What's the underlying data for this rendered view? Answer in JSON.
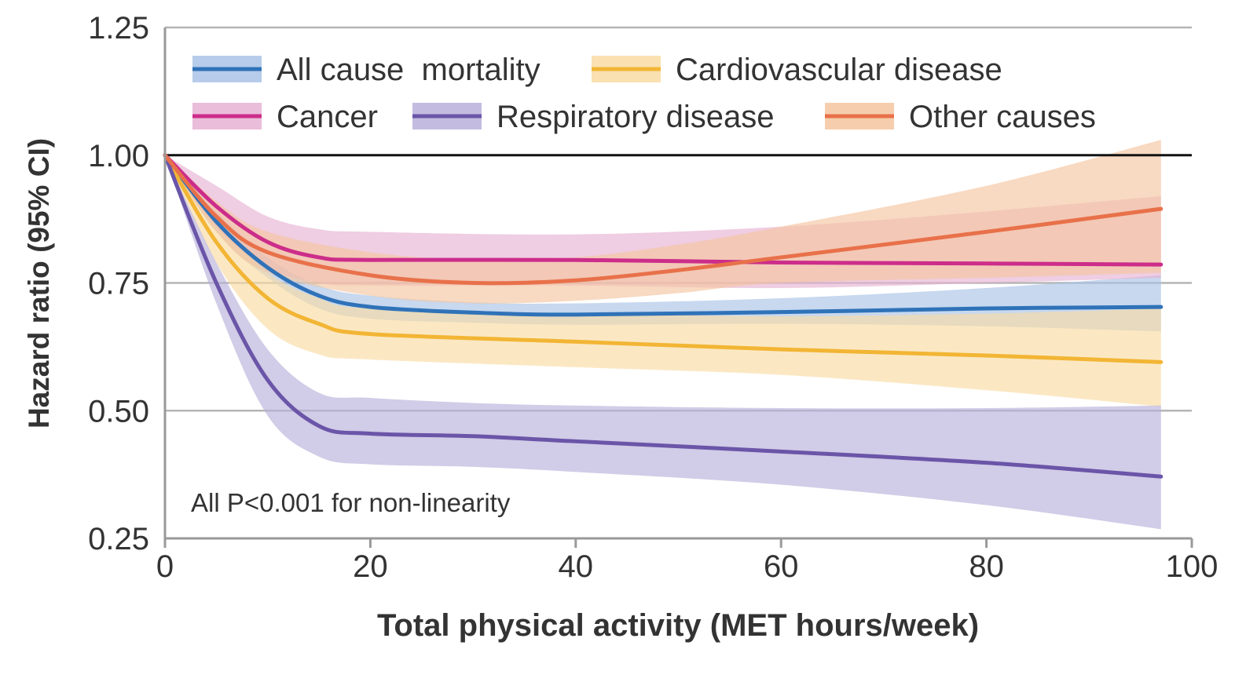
{
  "chart_data": {
    "type": "line",
    "title": "",
    "xlabel": "Total physical activity (MET hours/week)",
    "ylabel": "Hazard ratio (95% CI)",
    "xlim": [
      0,
      100
    ],
    "ylim": [
      0.25,
      1.25
    ],
    "xticks": [
      "0",
      "20",
      "40",
      "60",
      "80",
      "100"
    ],
    "yticks": [
      "0.25",
      "0.50",
      "0.75",
      "1.00",
      "1.25"
    ],
    "reference_line": 1.0,
    "grid": "horizontal",
    "legend_position": "top",
    "annotation": "All P<0.001 for non-linearity",
    "series": [
      {
        "name": "All cause  mortality",
        "color": "#2f72b8",
        "band_color": "#a9c3e6",
        "x": [
          0,
          5,
          10,
          15,
          20,
          30,
          40,
          60,
          80,
          97
        ],
        "y": [
          1.0,
          0.87,
          0.78,
          0.725,
          0.703,
          0.692,
          0.688,
          0.693,
          0.7,
          0.703
        ],
        "lower": [
          1.0,
          0.85,
          0.76,
          0.7,
          0.68,
          0.672,
          0.668,
          0.67,
          0.665,
          0.655
        ],
        "upper": [
          1.0,
          0.89,
          0.8,
          0.745,
          0.725,
          0.712,
          0.71,
          0.72,
          0.74,
          0.765
        ]
      },
      {
        "name": "Cardiovascular disease",
        "color": "#f2b534",
        "band_color": "#f9dca3",
        "x": [
          0,
          5,
          10,
          15,
          20,
          40,
          60,
          80,
          97
        ],
        "y": [
          1.0,
          0.83,
          0.72,
          0.67,
          0.65,
          0.635,
          0.62,
          0.608,
          0.595
        ],
        "lower": [
          1.0,
          0.79,
          0.66,
          0.61,
          0.6,
          0.585,
          0.57,
          0.54,
          0.508
        ],
        "upper": [
          1.0,
          0.87,
          0.77,
          0.72,
          0.7,
          0.69,
          0.685,
          0.69,
          0.7
        ]
      },
      {
        "name": "Cancer",
        "color": "#cc2d8a",
        "band_color": "#e6b2d3",
        "x": [
          0,
          5,
          10,
          15,
          20,
          40,
          60,
          80,
          97
        ],
        "y": [
          1.0,
          0.9,
          0.83,
          0.8,
          0.795,
          0.795,
          0.79,
          0.788,
          0.786
        ],
        "lower": [
          1.0,
          0.86,
          0.78,
          0.75,
          0.745,
          0.745,
          0.74,
          0.75,
          0.76
        ],
        "upper": [
          1.0,
          0.94,
          0.88,
          0.855,
          0.85,
          0.845,
          0.86,
          0.89,
          0.92
        ]
      },
      {
        "name": "Respiratory disease",
        "color": "#6a55a8",
        "band_color": "#b9b0da",
        "x": [
          0,
          5,
          10,
          15,
          20,
          30,
          40,
          60,
          80,
          97
        ],
        "y": [
          1.0,
          0.75,
          0.56,
          0.47,
          0.455,
          0.45,
          0.44,
          0.42,
          0.398,
          0.371
        ],
        "lower": [
          1.0,
          0.71,
          0.49,
          0.41,
          0.395,
          0.39,
          0.38,
          0.355,
          0.315,
          0.268
        ],
        "upper": [
          1.0,
          0.79,
          0.62,
          0.535,
          0.525,
          0.515,
          0.51,
          0.505,
          0.505,
          0.51
        ]
      },
      {
        "name": "Other causes",
        "color": "#e8714a",
        "band_color": "#f5c5a0",
        "x": [
          0,
          5,
          10,
          20,
          30,
          40,
          50,
          60,
          80,
          97
        ],
        "y": [
          1.0,
          0.88,
          0.81,
          0.765,
          0.75,
          0.755,
          0.775,
          0.8,
          0.85,
          0.895
        ],
        "lower": [
          1.0,
          0.85,
          0.77,
          0.725,
          0.71,
          0.715,
          0.73,
          0.75,
          0.76,
          0.77
        ],
        "upper": [
          1.0,
          0.91,
          0.85,
          0.81,
          0.795,
          0.8,
          0.825,
          0.86,
          0.94,
          1.03
        ]
      }
    ]
  }
}
